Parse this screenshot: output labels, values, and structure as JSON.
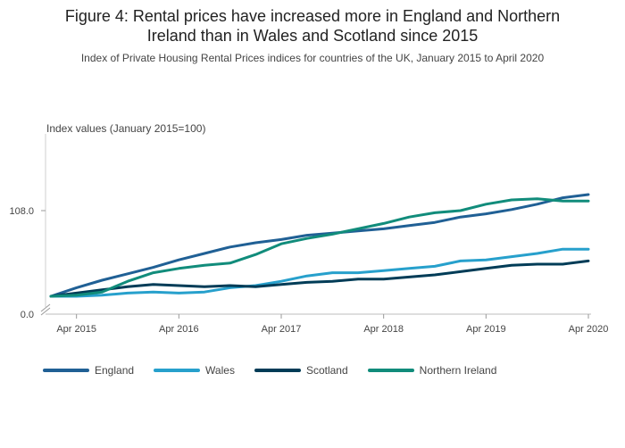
{
  "title_line1": "Figure 4: Rental prices have increased more in England and Northern",
  "title_line2": "Ireland than in Wales and Scotland since 2015",
  "subtitle": "Index of Private Housing Rental Prices indices for countries of the UK, January 2015 to April 2020",
  "colors": {
    "England": "#206095",
    "Wales": "#27a0cc",
    "Scotland": "#003c57",
    "Northern Ireland": "#118c7b"
  },
  "chart_data": {
    "type": "line",
    "ylabel": "Index values (January 2015=100)",
    "y_axis": "broken; ticks at 0.0 and 108.0 (break between 0 and ~100)",
    "ylim_visible": [
      100,
      114
    ],
    "yticks": [
      0.0,
      108.0
    ],
    "ytick_labels": [
      "0.0",
      "108.0"
    ],
    "xticks": [
      "Apr 2015",
      "Apr 2016",
      "Apr 2017",
      "Apr 2018",
      "Apr 2019",
      "Apr 2020"
    ],
    "x": [
      "2015-01",
      "2015-04",
      "2015-07",
      "2015-10",
      "2016-01",
      "2016-04",
      "2016-07",
      "2016-10",
      "2017-01",
      "2017-04",
      "2017-07",
      "2017-10",
      "2018-01",
      "2018-04",
      "2018-07",
      "2018-10",
      "2019-01",
      "2019-04",
      "2019-07",
      "2019-10",
      "2020-01",
      "2020-04"
    ],
    "series": [
      {
        "name": "England",
        "values": [
          100.0,
          100.8,
          101.5,
          102.1,
          102.7,
          103.4,
          104.0,
          104.6,
          105.0,
          105.3,
          105.7,
          105.9,
          106.1,
          106.3,
          106.6,
          106.9,
          107.4,
          107.7,
          108.1,
          108.6,
          109.2,
          109.5
        ]
      },
      {
        "name": "Wales",
        "values": [
          100.0,
          100.0,
          100.1,
          100.3,
          100.4,
          100.3,
          100.4,
          100.8,
          101.0,
          101.4,
          101.9,
          102.2,
          102.2,
          102.4,
          102.6,
          102.8,
          103.3,
          103.4,
          103.7,
          104.0,
          104.4,
          104.4
        ]
      },
      {
        "name": "Scotland",
        "values": [
          100.0,
          100.3,
          100.6,
          100.9,
          101.1,
          101.0,
          100.9,
          101.0,
          100.9,
          101.1,
          101.3,
          101.4,
          101.6,
          101.6,
          101.8,
          102.0,
          102.3,
          102.6,
          102.9,
          103.0,
          103.0,
          103.3
        ]
      },
      {
        "name": "Northern Ireland",
        "values": [
          100.0,
          100.1,
          100.4,
          101.4,
          102.2,
          102.6,
          102.9,
          103.1,
          103.9,
          104.9,
          105.4,
          105.8,
          106.3,
          106.8,
          107.4,
          107.8,
          108.0,
          108.6,
          109.0,
          109.1,
          108.9,
          108.9
        ]
      }
    ],
    "legend": "bottom",
    "grid": false
  }
}
